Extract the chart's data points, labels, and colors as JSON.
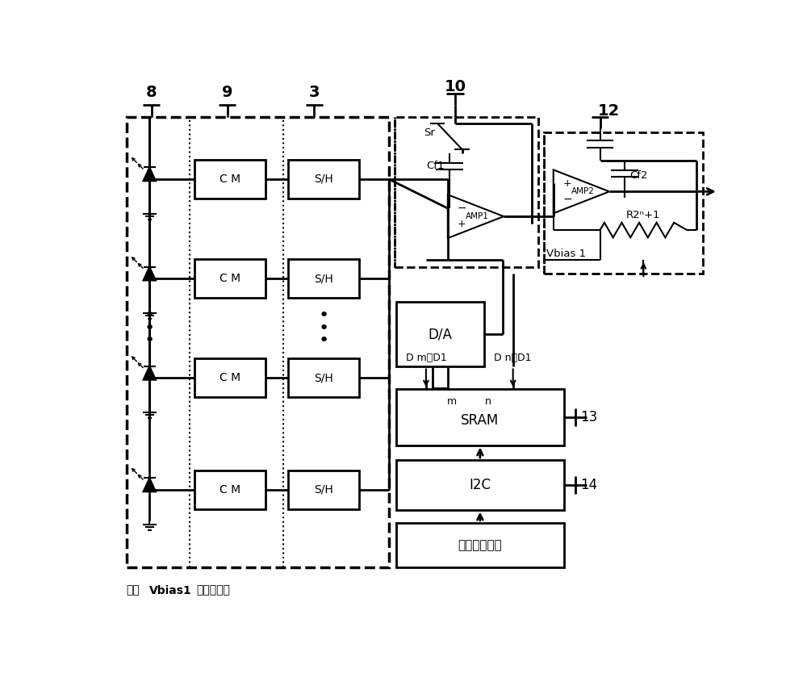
{
  "bg_color": "#ffffff",
  "note_prefix": "注：",
  "note_bold": "Vbias1",
  "note_suffix": "是偏置电压",
  "labels": {
    "cm": "C M",
    "sh": "S/H",
    "da": "D/A",
    "sram": "SRAM",
    "i2c": "I2C",
    "ext": "外部校正数据",
    "amp1": "AMP1",
    "amp2": "AMP2",
    "sr": "Sr",
    "cf1": "Cf1",
    "cf2": "Cf2",
    "r2n1": "R2ⁿ+1",
    "vbias1": "Vbias 1",
    "dm_d1": "D m～D1",
    "dn_d1": "D n～D1",
    "m": "m",
    "n": "n",
    "p8": "8",
    "p9": "9",
    "p3": "3",
    "p10": "10",
    "p12": "12",
    "p13": "13",
    "p14": "14"
  }
}
